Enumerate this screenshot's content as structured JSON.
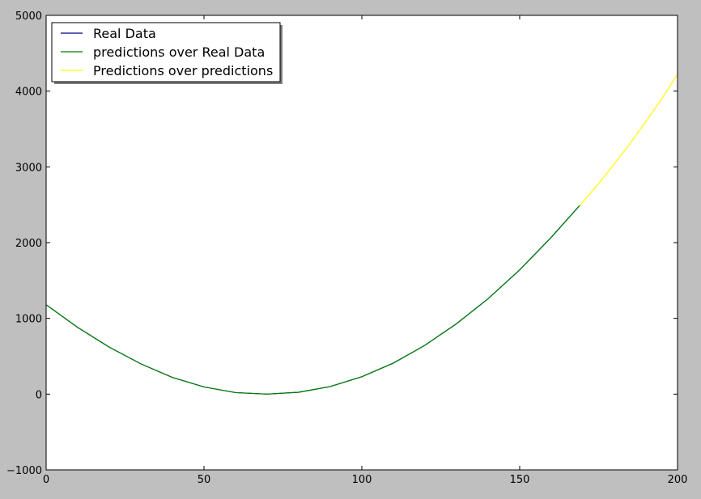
{
  "chart_data": {
    "type": "line",
    "title": "",
    "xlabel": "",
    "ylabel": "",
    "xlim": [
      0,
      200
    ],
    "ylim": [
      -1000,
      5000
    ],
    "x_ticks": [
      0,
      50,
      100,
      150,
      200
    ],
    "y_ticks": [
      -1000,
      0,
      1000,
      2000,
      3000,
      4000,
      5000
    ],
    "x_tick_labels": [
      "0",
      "50",
      "100",
      "150",
      "200"
    ],
    "y_tick_labels": [
      "−1000",
      "0",
      "1000",
      "2000",
      "3000",
      "4000",
      "5000"
    ],
    "grid": false,
    "legend_position": "upper-left",
    "background": "#ffffff",
    "figure_background": "#bfbfbf",
    "series": [
      {
        "name": "Real Data",
        "color": "#000080",
        "x": [
          0,
          10,
          20,
          30,
          40,
          50,
          60,
          70,
          80,
          90,
          100,
          110,
          120,
          130,
          140,
          150,
          160,
          169
        ],
        "values": [
          1180,
          880,
          620,
          400,
          220,
          95,
          20,
          0,
          25,
          100,
          230,
          410,
          645,
          930,
          1260,
          1640,
          2070,
          2490
        ]
      },
      {
        "name": "predictions over Real Data",
        "color": "#008000",
        "x": [
          0,
          10,
          20,
          30,
          40,
          50,
          60,
          70,
          80,
          90,
          100,
          110,
          120,
          130,
          140,
          150,
          160,
          169
        ],
        "values": [
          1180,
          880,
          620,
          400,
          220,
          95,
          20,
          0,
          25,
          100,
          230,
          410,
          645,
          930,
          1260,
          1640,
          2070,
          2490
        ]
      },
      {
        "name": "Predictions over predictions",
        "color": "#ffff00",
        "x": [
          169,
          175,
          180,
          185,
          190,
          195,
          200
        ],
        "values": [
          2490,
          2780,
          3040,
          3310,
          3600,
          3900,
          4220
        ]
      }
    ]
  }
}
